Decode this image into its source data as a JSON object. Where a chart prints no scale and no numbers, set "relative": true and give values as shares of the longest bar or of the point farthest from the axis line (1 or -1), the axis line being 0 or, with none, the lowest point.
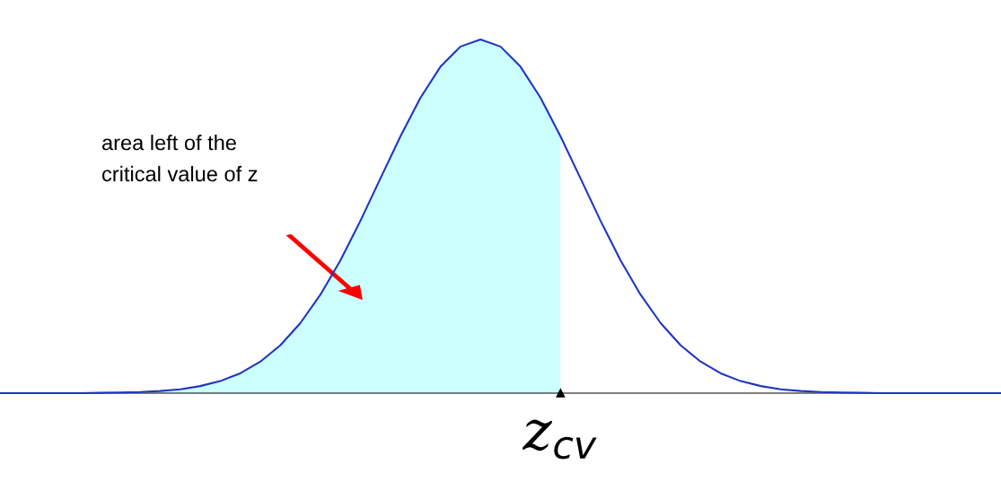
{
  "chart_data": {
    "type": "line",
    "relative": true,
    "categories": [
      null,
      null,
      null,
      null,
      null,
      null,
      null,
      null,
      null,
      null,
      null,
      null,
      null,
      null,
      null,
      null,
      null,
      null,
      null,
      null,
      null,
      null,
      null,
      null,
      null,
      null,
      null,
      null,
      null,
      null,
      null,
      null,
      null,
      null,
      null,
      null,
      null,
      null,
      null,
      null,
      null,
      null,
      null,
      null,
      null,
      null,
      null,
      null,
      null,
      null,
      null
    ],
    "series": [
      {
        "type": "area",
        "color": "#ccffff",
        "values": [
          0,
          0,
          0,
          0,
          0,
          0.001,
          0.002,
          0.003,
          0.006,
          0.011,
          0.02,
          0.034,
          0.056,
          0.089,
          0.135,
          0.198,
          0.278,
          0.375,
          0.487,
          0.607,
          0.726,
          0.835,
          0.923,
          0.98,
          1,
          0.98,
          0.923,
          0.835,
          0.726,
          null,
          null,
          null,
          null,
          null,
          null,
          null,
          null,
          null,
          null,
          null,
          null,
          null,
          null,
          null,
          null,
          null,
          null,
          null,
          null,
          null,
          null
        ]
      },
      {
        "color": "#1f35c4",
        "values": [
          0,
          0,
          0,
          0,
          0,
          0.001,
          0.002,
          0.003,
          0.006,
          0.011,
          0.02,
          0.034,
          0.056,
          0.089,
          0.135,
          0.198,
          0.278,
          0.375,
          0.487,
          0.607,
          0.726,
          0.835,
          0.923,
          0.98,
          1,
          0.98,
          0.923,
          0.835,
          0.726,
          0.607,
          0.487,
          0.375,
          0.278,
          0.198,
          0.135,
          0.089,
          0.056,
          0.034,
          0.02,
          0.011,
          0.006,
          0.003,
          0.002,
          0.001,
          0,
          0,
          0,
          0,
          0,
          0,
          0
        ]
      }
    ],
    "annotations": [
      "area left of the\ncritical value of z",
      "z$_{cv}$"
    ]
  }
}
